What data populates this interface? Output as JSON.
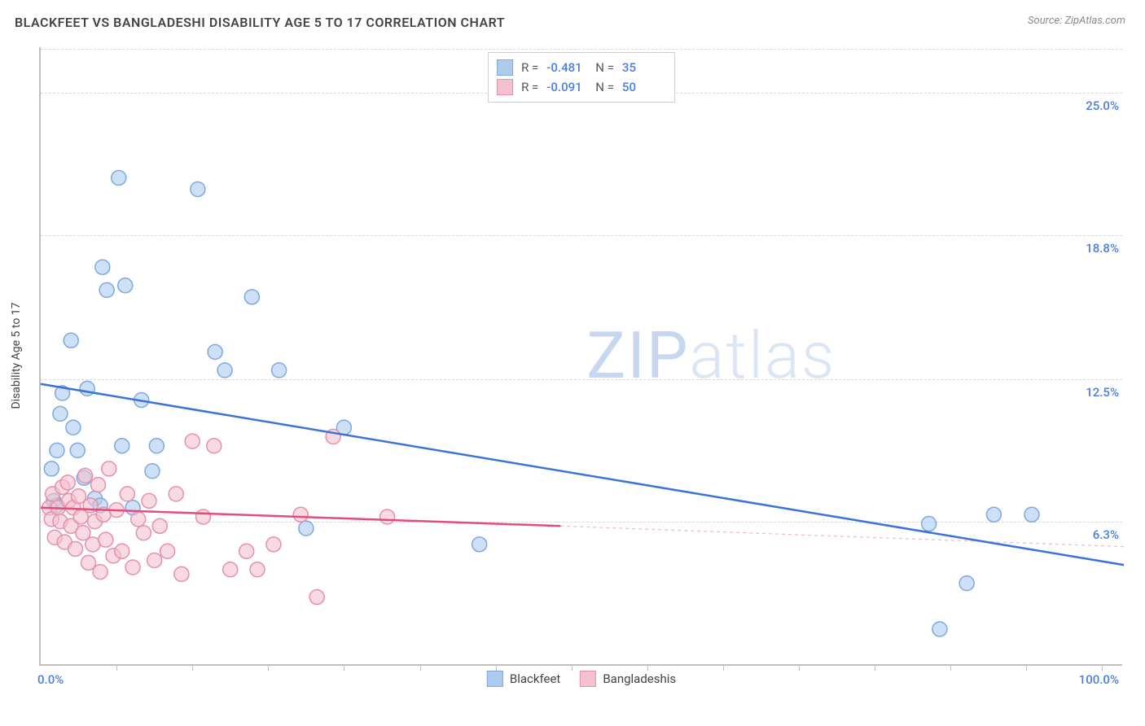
{
  "header": {
    "title": "BLACKFEET VS BANGLADESHI DISABILITY AGE 5 TO 17 CORRELATION CHART",
    "source_prefix": "Source: ",
    "source": "ZipAtlas.com"
  },
  "watermark": {
    "zip": "ZIP",
    "atlas": "atlas"
  },
  "chart": {
    "type": "scatter",
    "y_axis_label": "Disability Age 5 to 17",
    "x_origin_label": "0.0%",
    "x_max_label": "100.0%",
    "xlim": [
      0,
      100
    ],
    "ylim": [
      0,
      27
    ],
    "y_gridlines": [
      {
        "value": 6.3,
        "label": "6.3%"
      },
      {
        "value": 12.5,
        "label": "12.5%"
      },
      {
        "value": 18.8,
        "label": "18.8%"
      },
      {
        "value": 25.0,
        "label": "25.0%"
      }
    ],
    "x_minor_ticks": [
      7,
      14,
      21,
      28,
      35,
      42,
      49,
      56,
      63,
      70,
      77,
      84,
      91,
      98
    ],
    "background_color": "#ffffff",
    "grid_color": "#d7d7d7",
    "series": {
      "blackfeet": {
        "name": "Blackfeet",
        "color_fill": "#aecbee",
        "color_stroke": "#7ca9e0",
        "marker_radius": 9,
        "fill_opacity": 0.6,
        "R": "-0.481",
        "N": "35",
        "trend": {
          "x1": 0,
          "y1": 12.3,
          "x2": 100,
          "y2": 4.4,
          "color": "#3a74d8",
          "width": 2.5
        },
        "points": [
          [
            1.0,
            8.6
          ],
          [
            1.2,
            7.2
          ],
          [
            1.5,
            7.0
          ],
          [
            1.5,
            9.4
          ],
          [
            1.8,
            11.0
          ],
          [
            2.0,
            11.9
          ],
          [
            2.8,
            14.2
          ],
          [
            3.0,
            10.4
          ],
          [
            3.4,
            9.4
          ],
          [
            4.0,
            8.2
          ],
          [
            4.3,
            12.1
          ],
          [
            5.0,
            7.3
          ],
          [
            5.5,
            7.0
          ],
          [
            5.7,
            17.4
          ],
          [
            6.1,
            16.4
          ],
          [
            7.2,
            21.3
          ],
          [
            7.5,
            9.6
          ],
          [
            7.8,
            16.6
          ],
          [
            8.5,
            6.9
          ],
          [
            9.3,
            11.6
          ],
          [
            10.3,
            8.5
          ],
          [
            10.7,
            9.6
          ],
          [
            14.5,
            20.8
          ],
          [
            16.1,
            13.7
          ],
          [
            17.0,
            12.9
          ],
          [
            19.5,
            16.1
          ],
          [
            22.0,
            12.9
          ],
          [
            24.5,
            6.0
          ],
          [
            28.0,
            10.4
          ],
          [
            40.5,
            5.3
          ],
          [
            82.0,
            6.2
          ],
          [
            83.0,
            1.6
          ],
          [
            85.5,
            3.6
          ],
          [
            88.0,
            6.6
          ],
          [
            91.5,
            6.6
          ]
        ]
      },
      "bangladeshis": {
        "name": "Bangladeshis",
        "color_fill": "#f4c1cf",
        "color_stroke": "#e78fab",
        "marker_radius": 9,
        "fill_opacity": 0.6,
        "R": "-0.091",
        "N": "50",
        "trend_solid": {
          "x1": 0,
          "y1": 6.9,
          "x2": 48,
          "y2": 6.1,
          "color": "#e44d7a",
          "width": 2.5
        },
        "trend_dashed": {
          "x1": 48,
          "y1": 6.1,
          "x2": 100,
          "y2": 5.2,
          "color": "#f2b8c8",
          "width": 1.2,
          "dash": "4,4"
        },
        "points": [
          [
            0.8,
            6.9
          ],
          [
            1.0,
            6.4
          ],
          [
            1.1,
            7.5
          ],
          [
            1.3,
            5.6
          ],
          [
            1.6,
            6.9
          ],
          [
            1.8,
            6.3
          ],
          [
            2.0,
            7.8
          ],
          [
            2.2,
            5.4
          ],
          [
            2.5,
            8.0
          ],
          [
            2.6,
            7.2
          ],
          [
            2.8,
            6.1
          ],
          [
            3.0,
            6.9
          ],
          [
            3.2,
            5.1
          ],
          [
            3.5,
            7.4
          ],
          [
            3.7,
            6.5
          ],
          [
            3.9,
            5.8
          ],
          [
            4.1,
            8.3
          ],
          [
            4.4,
            4.5
          ],
          [
            4.6,
            7.0
          ],
          [
            4.8,
            5.3
          ],
          [
            5.0,
            6.3
          ],
          [
            5.3,
            7.9
          ],
          [
            5.5,
            4.1
          ],
          [
            5.8,
            6.6
          ],
          [
            6.0,
            5.5
          ],
          [
            6.3,
            8.6
          ],
          [
            6.7,
            4.8
          ],
          [
            7.0,
            6.8
          ],
          [
            7.5,
            5.0
          ],
          [
            8.0,
            7.5
          ],
          [
            8.5,
            4.3
          ],
          [
            9.0,
            6.4
          ],
          [
            9.5,
            5.8
          ],
          [
            10.0,
            7.2
          ],
          [
            10.5,
            4.6
          ],
          [
            11.0,
            6.1
          ],
          [
            11.7,
            5.0
          ],
          [
            12.5,
            7.5
          ],
          [
            13.0,
            4.0
          ],
          [
            14.0,
            9.8
          ],
          [
            15.0,
            6.5
          ],
          [
            16.0,
            9.6
          ],
          [
            17.5,
            4.2
          ],
          [
            19.0,
            5.0
          ],
          [
            20.0,
            4.2
          ],
          [
            21.5,
            5.3
          ],
          [
            24.0,
            6.6
          ],
          [
            25.5,
            3.0
          ],
          [
            27.0,
            10.0
          ],
          [
            32.0,
            6.5
          ]
        ]
      }
    },
    "legend_labels": {
      "R": "R =",
      "N": "N ="
    }
  }
}
